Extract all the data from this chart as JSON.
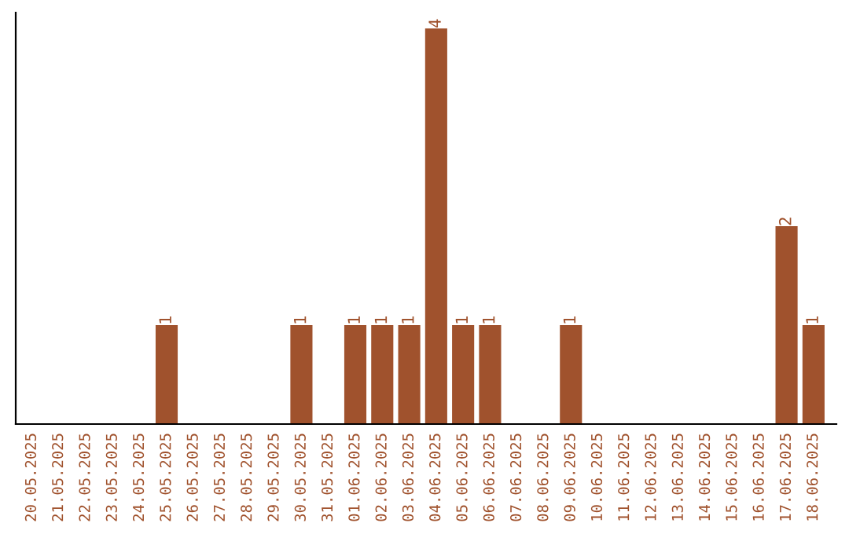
{
  "chart_data": {
    "type": "bar",
    "categories": [
      "20.05.2025",
      "21.05.2025",
      "22.05.2025",
      "23.05.2025",
      "24.05.2025",
      "25.05.2025",
      "26.05.2025",
      "27.05.2025",
      "28.05.2025",
      "29.05.2025",
      "30.05.2025",
      "31.05.2025",
      "01.06.2025",
      "02.06.2025",
      "03.06.2025",
      "04.06.2025",
      "05.06.2025",
      "06.06.2025",
      "07.06.2025",
      "08.06.2025",
      "09.06.2025",
      "10.06.2025",
      "11.06.2025",
      "12.06.2025",
      "13.06.2025",
      "14.06.2025",
      "15.06.2025",
      "16.06.2025",
      "17.06.2025",
      "18.06.2025"
    ],
    "values": [
      0,
      0,
      0,
      0,
      0,
      1,
      0,
      0,
      0,
      0,
      1,
      0,
      1,
      1,
      1,
      4,
      1,
      1,
      0,
      0,
      1,
      0,
      0,
      0,
      0,
      0,
      0,
      0,
      2,
      1
    ],
    "value_labels": [
      null,
      null,
      null,
      null,
      null,
      "1",
      null,
      null,
      null,
      null,
      "1",
      null,
      "1",
      "1",
      "1",
      "4",
      "1",
      "1",
      null,
      null,
      "1",
      null,
      null,
      null,
      null,
      null,
      null,
      null,
      "2",
      "1"
    ],
    "color": "#a0522d",
    "grid": false,
    "legend": false
  }
}
